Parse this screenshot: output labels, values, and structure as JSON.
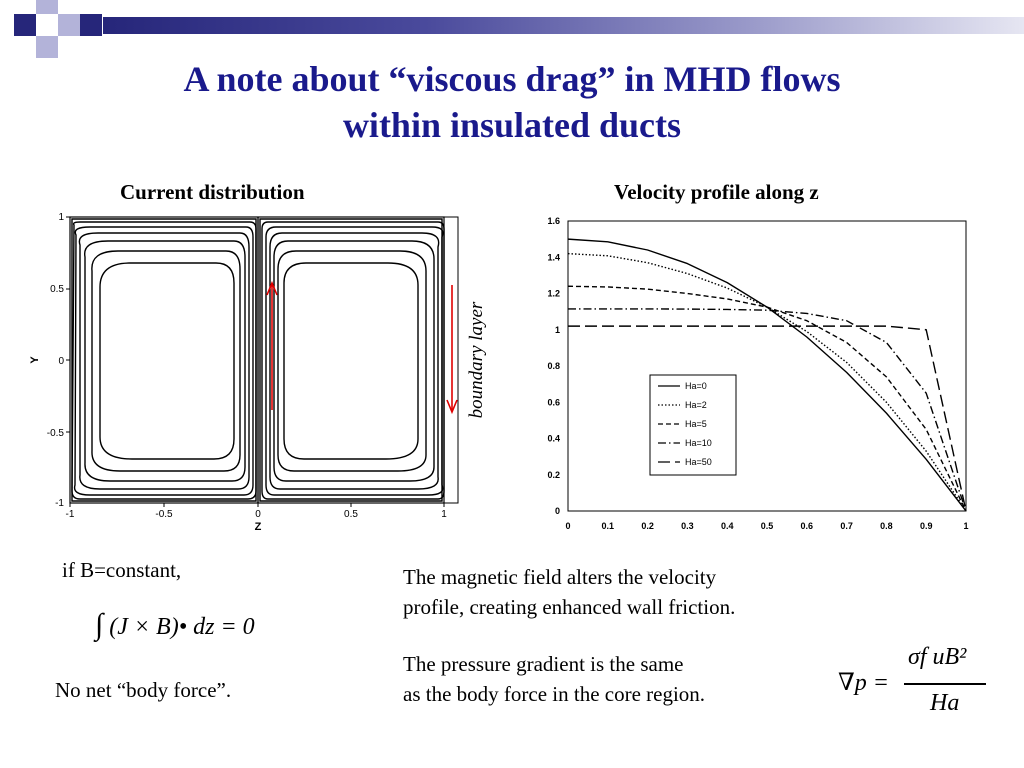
{
  "slide": {
    "title_line1": "A note about “viscous drag” in MHD flows",
    "title_line2": "within insulated ducts",
    "theme_colors": {
      "title": "#1a1a8c",
      "decor_dark": "#26267a",
      "decor_light": "#b3b3d9",
      "arrow": "#e00000"
    }
  },
  "left_panel": {
    "heading": "Current distribution",
    "xlabel": "Z",
    "ylabel": "Y",
    "xticks": [
      "-1",
      "-0.5",
      "0",
      "0.5",
      "1"
    ],
    "yticks": [
      "1",
      "0.5",
      "0",
      "-0.5",
      "-1"
    ],
    "annotation": "boundary layer"
  },
  "right_panel": {
    "heading": "Velocity profile along z"
  },
  "chart_data": {
    "type": "line",
    "xlim": [
      0,
      1
    ],
    "ylim": [
      0,
      1.6
    ],
    "xticks": [
      "0",
      "0.1",
      "0.2",
      "0.3",
      "0.4",
      "0.5",
      "0.6",
      "0.7",
      "0.8",
      "0.9",
      "1"
    ],
    "yticks": [
      "0",
      "0.2",
      "0.4",
      "0.6",
      "0.8",
      "1",
      "1.2",
      "1.4",
      "1.6"
    ],
    "legend_position": "lower-left",
    "x": [
      0,
      0.1,
      0.2,
      0.3,
      0.4,
      0.5,
      0.6,
      0.7,
      0.8,
      0.9,
      1
    ],
    "series": [
      {
        "name": "Ha=0",
        "dash": "solid",
        "values": [
          1.5,
          1.485,
          1.44,
          1.365,
          1.26,
          1.125,
          0.96,
          0.765,
          0.54,
          0.285,
          0.0
        ]
      },
      {
        "name": "Ha=2",
        "dash": "dotted",
        "values": [
          1.42,
          1.408,
          1.37,
          1.31,
          1.23,
          1.125,
          0.99,
          0.82,
          0.6,
          0.33,
          0.0
        ]
      },
      {
        "name": "Ha=5",
        "dash": "dashed",
        "values": [
          1.24,
          1.236,
          1.224,
          1.2,
          1.17,
          1.125,
          1.05,
          0.93,
          0.74,
          0.45,
          0.0
        ]
      },
      {
        "name": "Ha=10",
        "dash": "dashdot",
        "values": [
          1.115,
          1.115,
          1.115,
          1.114,
          1.112,
          1.108,
          1.09,
          1.05,
          0.93,
          0.65,
          0.0
        ]
      },
      {
        "name": "Ha=50",
        "dash": "longdash",
        "values": [
          1.02,
          1.02,
          1.02,
          1.02,
          1.02,
          1.02,
          1.02,
          1.02,
          1.02,
          1.0,
          0.0
        ]
      }
    ]
  },
  "notes": {
    "if_b_constant": "if B=constant,",
    "eq1_integral": "∫",
    "eq1_body": "(J × B)• dz = 0",
    "no_net": "No net “body force”.",
    "magnetic_line1": "The magnetic field alters the velocity",
    "magnetic_line2": "profile, creating enhanced wall friction.",
    "pressure_line1": "The pressure gradient is the same",
    "pressure_line2": "as the body force in the core region.",
    "eq2_lhs": "∇p =",
    "eq2_num": "σf uB²",
    "eq2_den": "Ha"
  }
}
